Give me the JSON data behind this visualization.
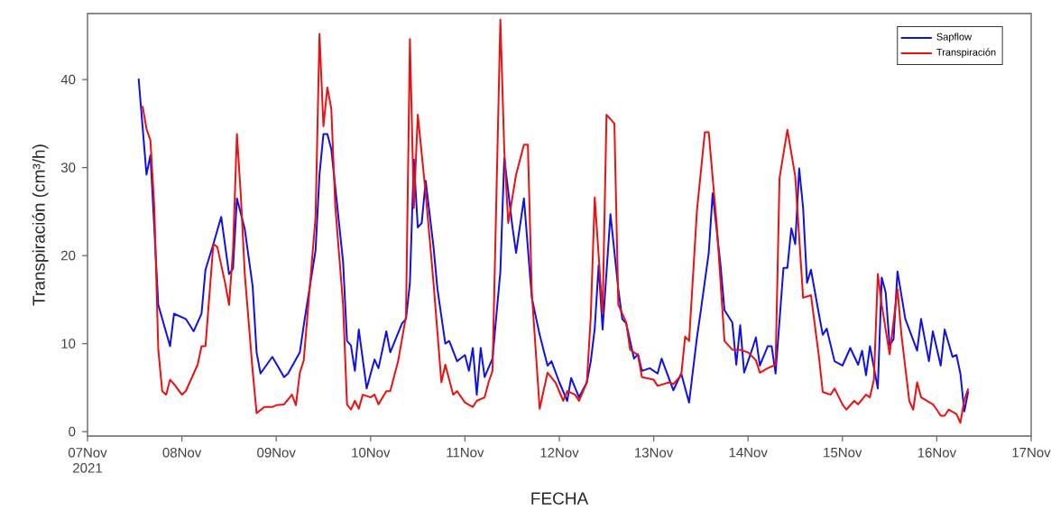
{
  "chart_data": {
    "type": "line",
    "xlabel": "FECHA",
    "ylabel": "Transpiración (cm³/h)",
    "xlim": [
      "2021-11-07",
      "2021-11-17"
    ],
    "xticks": [
      {
        "value": "2021-11-07",
        "label": "07Nov 2021"
      },
      {
        "value": "2021-11-08",
        "label": "08Nov"
      },
      {
        "value": "2021-11-09",
        "label": "09Nov"
      },
      {
        "value": "2021-11-10",
        "label": "10Nov"
      },
      {
        "value": "2021-11-11",
        "label": "11Nov"
      },
      {
        "value": "2021-11-12",
        "label": "12Nov"
      },
      {
        "value": "2021-11-13",
        "label": "13Nov"
      },
      {
        "value": "2021-11-14",
        "label": "14Nov"
      },
      {
        "value": "2021-11-15",
        "label": "15Nov"
      },
      {
        "value": "2021-11-16",
        "label": "16Nov"
      },
      {
        "value": "2021-11-17",
        "label": "17Nov"
      }
    ],
    "ylim": [
      -0.5,
      47.5
    ],
    "yticks": [
      0,
      10,
      20,
      30,
      40
    ],
    "legend": "top right",
    "grid": false,
    "marker": "none",
    "line_style": "solid",
    "series": [
      {
        "name": "Sapflow",
        "color": "#1010ee",
        "x": [
          "2021-11-07T13:00",
          "2021-11-07T15:00",
          "2021-11-07T16:00",
          "2021-11-07T17:00",
          "2021-11-07T18:00",
          "2021-11-07T21:00",
          "2021-11-07T22:00",
          "2021-11-08T01:00",
          "2021-11-08T03:00",
          "2021-11-08T05:00",
          "2021-11-08T06:00",
          "2021-11-08T08:00",
          "2021-11-08T10:00",
          "2021-11-08T12:00",
          "2021-11-08T13:00",
          "2021-11-08T14:00",
          "2021-11-08T16:00",
          "2021-11-08T18:00",
          "2021-11-08T19:00",
          "2021-11-08T20:00",
          "2021-11-08T23:00",
          "2021-11-09T02:00",
          "2021-11-09T03:00",
          "2021-11-09T06:00",
          "2021-11-09T07:00",
          "2021-11-09T10:00",
          "2021-11-09T11:00",
          "2021-11-09T12:00",
          "2021-11-09T13:00",
          "2021-11-09T14:00",
          "2021-11-09T17:00",
          "2021-11-09T18:00",
          "2021-11-09T19:00",
          "2021-11-09T20:00",
          "2021-11-09T21:00",
          "2021-11-09T23:00",
          "2021-11-10T01:00",
          "2021-11-10T02:00",
          "2021-11-10T04:00",
          "2021-11-10T05:00",
          "2021-11-10T08:00",
          "2021-11-10T09:00",
          "2021-11-10T10:00",
          "2021-11-10T11:00",
          "2021-11-10T12:00",
          "2021-11-10T13:00",
          "2021-11-10T14:00",
          "2021-11-10T16:00",
          "2021-11-10T17:00",
          "2021-11-10T19:00",
          "2021-11-10T20:00",
          "2021-11-10T22:00",
          "2021-11-11T00:00",
          "2021-11-11T01:00",
          "2021-11-11T02:00",
          "2021-11-11T03:00",
          "2021-11-11T04:00",
          "2021-11-11T05:00",
          "2021-11-11T07:00",
          "2021-11-11T09:00",
          "2021-11-11T10:00",
          "2021-11-11T12:00",
          "2021-11-11T13:00",
          "2021-11-11T15:00",
          "2021-11-11T17:00",
          "2021-11-11T19:00",
          "2021-11-11T21:00",
          "2021-11-11T22:00",
          "2021-11-12T00:00",
          "2021-11-12T02:00",
          "2021-11-12T03:00",
          "2021-11-12T05:00",
          "2021-11-12T07:00",
          "2021-11-12T08:00",
          "2021-11-12T09:00",
          "2021-11-12T10:00",
          "2021-11-12T11:00",
          "2021-11-12T13:00",
          "2021-11-12T15:00",
          "2021-11-12T16:00",
          "2021-11-12T17:00",
          "2021-11-12T19:00",
          "2021-11-12T20:00",
          "2021-11-12T21:00",
          "2021-11-12T23:00",
          "2021-11-13T01:00",
          "2021-11-13T02:00",
          "2021-11-13T04:00",
          "2021-11-13T05:00",
          "2021-11-13T07:00",
          "2021-11-13T09:00",
          "2021-11-13T11:00",
          "2021-11-13T12:00",
          "2021-11-13T14:00",
          "2021-11-13T15:00",
          "2021-11-13T17:00",
          "2021-11-13T18:00",
          "2021-11-13T20:00",
          "2021-11-13T21:00",
          "2021-11-13T22:00",
          "2021-11-13T23:00",
          "2021-11-14T01:00",
          "2021-11-14T02:00",
          "2021-11-14T03:00",
          "2021-11-14T05:00",
          "2021-11-14T06:00",
          "2021-11-14T07:00",
          "2021-11-14T09:00",
          "2021-11-14T10:00",
          "2021-11-14T11:00",
          "2021-11-14T12:00",
          "2021-11-14T13:00",
          "2021-11-14T14:00",
          "2021-11-14T15:00",
          "2021-11-14T16:00",
          "2021-11-14T18:00",
          "2021-11-14T19:00",
          "2021-11-14T20:00",
          "2021-11-14T22:00",
          "2021-11-15T00:00",
          "2021-11-15T02:00",
          "2021-11-15T04:00",
          "2021-11-15T05:00",
          "2021-11-15T06:00",
          "2021-11-15T07:00",
          "2021-11-15T09:00",
          "2021-11-15T10:00",
          "2021-11-15T11:00",
          "2021-11-15T12:00",
          "2021-11-15T13:00",
          "2021-11-15T14:00",
          "2021-11-15T16:00",
          "2021-11-15T19:00",
          "2021-11-15T20:00",
          "2021-11-15T22:00",
          "2021-11-15T23:00",
          "2021-11-16T01:00",
          "2021-11-16T02:00",
          "2021-11-16T04:00",
          "2021-11-16T05:00",
          "2021-11-16T06:00",
          "2021-11-16T07:00",
          "2021-11-16T08:00"
        ],
        "values": [
          40.1,
          29.2,
          31.4,
          23.0,
          14.4,
          9.7,
          13.4,
          12.8,
          11.4,
          13.4,
          18.4,
          21.3,
          24.4,
          17.9,
          18.5,
          26.5,
          23.0,
          16.5,
          9.0,
          6.6,
          8.5,
          6.2,
          6.6,
          9.0,
          12.1,
          20.6,
          29.2,
          33.8,
          33.8,
          32.1,
          19.3,
          10.3,
          9.8,
          6.9,
          11.6,
          4.9,
          8.2,
          7.2,
          11.4,
          9.0,
          12.3,
          12.8,
          16.9,
          30.9,
          23.2,
          23.7,
          28.5,
          21.0,
          16.2,
          10.0,
          10.3,
          8.0,
          8.7,
          6.9,
          9.5,
          4.2,
          9.5,
          6.2,
          8.3,
          18.2,
          31.1,
          23.5,
          20.3,
          26.5,
          15.2,
          11.0,
          7.5,
          8.0,
          5.6,
          3.5,
          6.1,
          3.9,
          5.6,
          8.0,
          11.7,
          18.9,
          11.6,
          24.7,
          16.2,
          12.8,
          12.3,
          8.3,
          8.8,
          6.9,
          7.2,
          6.6,
          8.3,
          5.9,
          4.7,
          6.6,
          3.3,
          10.7,
          13.8,
          20.3,
          27.1,
          18.9,
          13.8,
          12.4,
          7.6,
          12.1,
          6.7,
          9.3,
          10.7,
          7.5,
          9.7,
          9.7,
          6.6,
          18.6,
          18.6,
          23.1,
          21.3,
          29.9,
          25.4,
          16.9,
          18.4,
          13.4,
          11.0,
          11.7,
          8.0,
          7.5,
          9.5,
          7.6,
          9.2,
          6.4,
          9.7,
          4.9,
          17.5,
          15.8,
          9.8,
          10.5,
          18.2,
          12.8,
          9.2,
          12.8,
          8.0,
          11.4,
          7.5,
          11.6,
          8.5,
          8.7,
          6.6,
          2.3,
          4.6
        ]
      },
      {
        "name": "Transpiración",
        "color": "#ee1010",
        "x": [
          "2021-11-07T14:00",
          "2021-11-07T15:00",
          "2021-11-07T16:00",
          "2021-11-07T17:00",
          "2021-11-07T18:00",
          "2021-11-07T19:00",
          "2021-11-07T20:00",
          "2021-11-07T21:00",
          "2021-11-07T22:00",
          "2021-11-08T00:00",
          "2021-11-08T01:00",
          "2021-11-08T04:00",
          "2021-11-08T05:00",
          "2021-11-08T06:00",
          "2021-11-08T08:00",
          "2021-11-08T09:00",
          "2021-11-08T11:00",
          "2021-11-08T12:00",
          "2021-11-08T13:00",
          "2021-11-08T14:00",
          "2021-11-08T15:00",
          "2021-11-08T16:00",
          "2021-11-08T18:00",
          "2021-11-08T19:00",
          "2021-11-08T21:00",
          "2021-11-08T23:00",
          "2021-11-09T00:00",
          "2021-11-09T02:00",
          "2021-11-09T04:00",
          "2021-11-09T05:00",
          "2021-11-09T06:00",
          "2021-11-09T07:00",
          "2021-11-09T10:00",
          "2021-11-09T11:00",
          "2021-11-09T12:00",
          "2021-11-09T13:00",
          "2021-11-09T14:00",
          "2021-11-09T15:00",
          "2021-11-09T17:00",
          "2021-11-09T18:00",
          "2021-11-09T19:00",
          "2021-11-09T20:00",
          "2021-11-09T21:00",
          "2021-11-09T22:00",
          "2021-11-10T00:00",
          "2021-11-10T01:00",
          "2021-11-10T02:00",
          "2021-11-10T04:00",
          "2021-11-10T05:00",
          "2021-11-10T07:00",
          "2021-11-10T09:00",
          "2021-11-10T10:00",
          "2021-11-10T11:00",
          "2021-11-10T12:00",
          "2021-11-10T14:00",
          "2021-11-10T16:00",
          "2021-11-10T18:00",
          "2021-11-10T19:00",
          "2021-11-10T21:00",
          "2021-11-10T22:00",
          "2021-11-11T00:00",
          "2021-11-11T02:00",
          "2021-11-11T03:00",
          "2021-11-11T05:00",
          "2021-11-11T06:00",
          "2021-11-11T07:00",
          "2021-11-11T09:00",
          "2021-11-11T10:00",
          "2021-11-11T11:00",
          "2021-11-11T13:00",
          "2021-11-11T15:00",
          "2021-11-11T16:00",
          "2021-11-11T17:00",
          "2021-11-11T19:00",
          "2021-11-11T21:00",
          "2021-11-11T23:00",
          "2021-11-12T01:00",
          "2021-11-12T02:00",
          "2021-11-12T04:00",
          "2021-11-12T05:00",
          "2021-11-12T07:00",
          "2021-11-12T08:00",
          "2021-11-12T09:00",
          "2021-11-12T11:00",
          "2021-11-12T12:00",
          "2021-11-12T14:00",
          "2021-11-12T15:00",
          "2021-11-12T17:00",
          "2021-11-12T18:00",
          "2021-11-12T20:00",
          "2021-11-12T21:00",
          "2021-11-13T00:00",
          "2021-11-13T01:00",
          "2021-11-13T04:00",
          "2021-11-13T05:00",
          "2021-11-13T07:00",
          "2021-11-13T08:00",
          "2021-11-13T09:00",
          "2021-11-13T11:00",
          "2021-11-13T13:00",
          "2021-11-13T14:00",
          "2021-11-13T16:00",
          "2021-11-13T18:00",
          "2021-11-13T20:00",
          "2021-11-13T22:00",
          "2021-11-14T00:00",
          "2021-11-14T02:00",
          "2021-11-14T03:00",
          "2021-11-14T05:00",
          "2021-11-14T07:00",
          "2021-11-14T08:00",
          "2021-11-14T10:00",
          "2021-11-14T12:00",
          "2021-11-14T14:00",
          "2021-11-14T16:00",
          "2021-11-14T18:00",
          "2021-11-14T19:00",
          "2021-11-14T21:00",
          "2021-11-14T22:00",
          "2021-11-15T00:00",
          "2021-11-15T01:00",
          "2021-11-15T03:00",
          "2021-11-15T04:00",
          "2021-11-15T06:00",
          "2021-11-15T07:00",
          "2021-11-15T08:00",
          "2021-11-15T09:00",
          "2021-11-15T10:00",
          "2021-11-15T12:00",
          "2021-11-15T14:00",
          "2021-11-15T15:00",
          "2021-11-15T17:00",
          "2021-11-15T18:00",
          "2021-11-15T19:00",
          "2021-11-15T20:00",
          "2021-11-15T23:00",
          "2021-11-16T00:00",
          "2021-11-16T01:00",
          "2021-11-16T02:00",
          "2021-11-16T03:00",
          "2021-11-16T05:00",
          "2021-11-16T06:00",
          "2021-11-16T07:00",
          "2021-11-16T08:00"
        ],
        "values": [
          37.0,
          34.4,
          33.1,
          25.4,
          9.3,
          4.6,
          4.2,
          5.9,
          5.4,
          4.2,
          4.6,
          7.6,
          9.7,
          9.7,
          21.3,
          21.0,
          16.9,
          14.4,
          20.6,
          33.8,
          26.8,
          17.9,
          6.9,
          2.1,
          2.8,
          2.8,
          3.0,
          3.1,
          4.2,
          3.0,
          6.7,
          8.1,
          24.4,
          45.2,
          34.7,
          39.1,
          36.7,
          25.7,
          14.4,
          3.1,
          2.5,
          3.5,
          2.6,
          4.2,
          3.9,
          4.2,
          3.1,
          4.6,
          4.6,
          8.0,
          13.1,
          44.6,
          25.4,
          36.0,
          27.1,
          16.9,
          5.6,
          7.6,
          4.2,
          4.6,
          3.3,
          2.8,
          3.5,
          3.9,
          5.6,
          6.9,
          46.8,
          31.9,
          23.7,
          29.2,
          32.6,
          32.6,
          15.8,
          2.6,
          6.7,
          5.6,
          3.5,
          4.6,
          4.2,
          3.5,
          5.6,
          13.1,
          26.6,
          13.4,
          36.0,
          35.0,
          14.4,
          12.4,
          9.3,
          8.7,
          6.2,
          5.9,
          5.2,
          5.6,
          5.4,
          6.4,
          10.8,
          10.3,
          25.1,
          34.0,
          34.0,
          23.7,
          10.3,
          9.3,
          9.3,
          9.0,
          8.1,
          6.7,
          7.2,
          7.6,
          28.8,
          34.3,
          29.0,
          15.2,
          15.5,
          8.6,
          4.5,
          4.2,
          4.9,
          3.1,
          2.5,
          3.5,
          3.1,
          4.2,
          3.9,
          5.9,
          17.9,
          14.4,
          8.8,
          16.2,
          11.0,
          3.5,
          2.5,
          5.6,
          3.9,
          3.1,
          2.5,
          1.8,
          1.8,
          2.5,
          2.0,
          1.0,
          3.6,
          4.9
        ]
      }
    ]
  }
}
